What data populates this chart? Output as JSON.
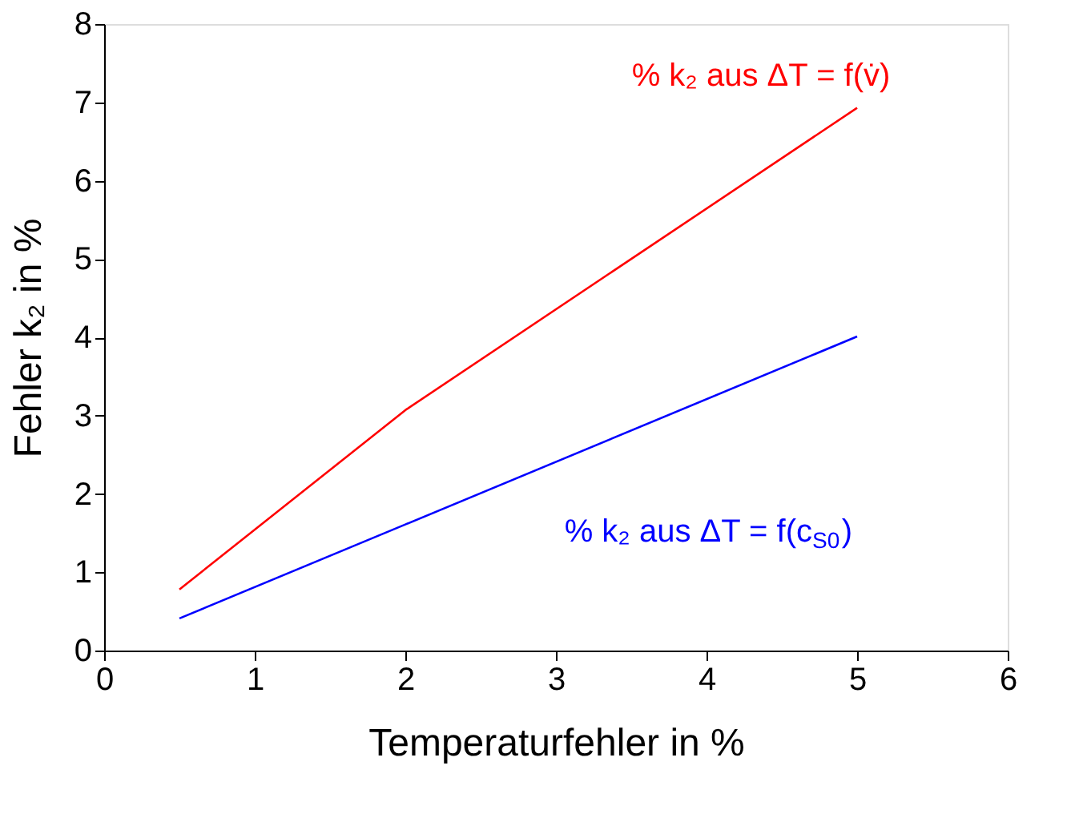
{
  "chart_data": {
    "type": "line",
    "xlabel": "Temperaturfehler in %",
    "ylabel": "Fehler k₂ in %",
    "x": [
      0.5,
      2,
      5
    ],
    "series": [
      {
        "name": "% k₂ aus ΔT = f(v̇)",
        "color": "#ff0000",
        "values": [
          0.78,
          3.07,
          6.93
        ]
      },
      {
        "name": "% k₂ aus ΔT = f(c$_{S0}$)",
        "color": "#0000ff",
        "values": [
          0.41,
          1.61,
          4.01
        ]
      }
    ],
    "xlim": [
      0,
      6
    ],
    "xticks": [
      0,
      1,
      2,
      3,
      4,
      5,
      6
    ],
    "ylim": [
      0,
      8
    ],
    "yticks": [
      0,
      1,
      2,
      3,
      4,
      5,
      6,
      7,
      8
    ],
    "grid": false,
    "legend": false,
    "marker": "none",
    "line_style": "solid"
  }
}
